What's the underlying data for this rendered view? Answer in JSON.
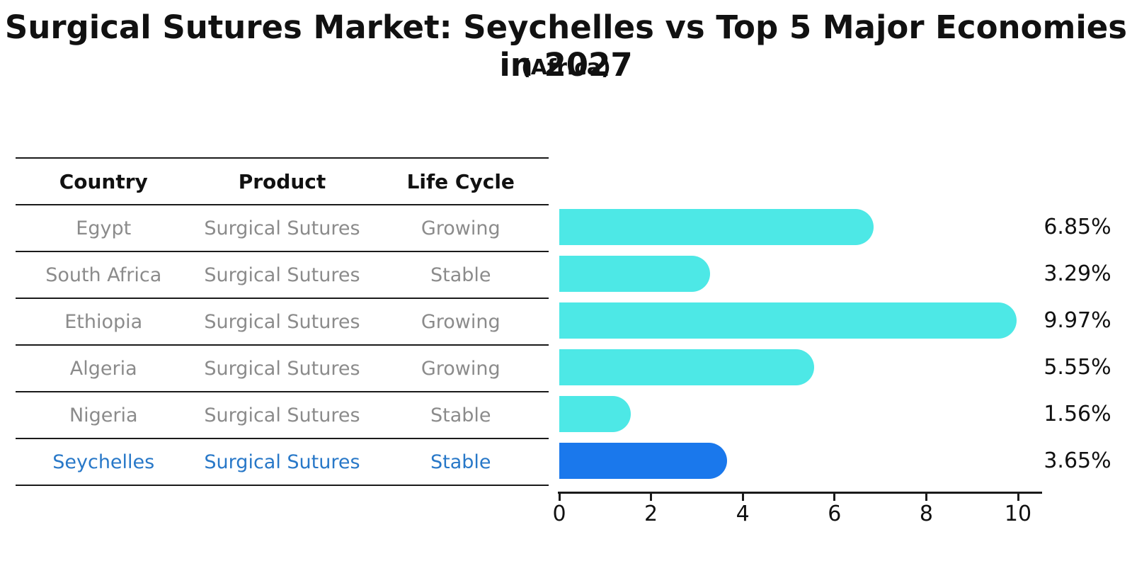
{
  "title": "Surgical Sutures Market: Seychelles vs Top 5 Major Economies in 2027",
  "subtitle": "(Africa)",
  "table": {
    "headers": [
      "Country",
      "Product",
      "Life Cycle"
    ],
    "rows": [
      {
        "country": "Egypt",
        "product": "Surgical Sutures",
        "life_cycle": "Growing",
        "highlight": false
      },
      {
        "country": "South Africa",
        "product": "Surgical Sutures",
        "life_cycle": "Stable",
        "highlight": false
      },
      {
        "country": "Ethiopia",
        "product": "Surgical Sutures",
        "life_cycle": "Growing",
        "highlight": false
      },
      {
        "country": "Algeria",
        "product": "Surgical Sutures",
        "life_cycle": "Growing",
        "highlight": false
      },
      {
        "country": "Nigeria",
        "product": "Surgical Sutures",
        "life_cycle": "Stable",
        "highlight": false
      },
      {
        "country": "Seychelles",
        "product": "Surgical Sutures",
        "life_cycle": "Stable",
        "highlight": true
      }
    ]
  },
  "chart_data": {
    "type": "bar",
    "orientation": "horizontal",
    "categories": [
      "Egypt",
      "South Africa",
      "Ethiopia",
      "Algeria",
      "Nigeria",
      "Seychelles"
    ],
    "values": [
      6.85,
      3.29,
      9.97,
      5.55,
      1.56,
      3.65
    ],
    "value_labels": [
      "6.85%",
      "3.29%",
      "9.97%",
      "5.55%",
      "1.56%",
      "3.65%"
    ],
    "highlight_index": 5,
    "x_ticks": [
      "0",
      "2",
      "4",
      "6",
      "8",
      "10"
    ],
    "x_tick_values": [
      0,
      2,
      4,
      6,
      8,
      10
    ],
    "xlim": [
      0,
      10.5
    ],
    "grid": false,
    "legend": "none",
    "bar_color": "#4de8e6",
    "highlight_bar_color": "#1a78ec",
    "highlight_bar_edge_style": "dotted"
  },
  "colors": {
    "background": "#ffffff",
    "table_line": "#1a1a1a",
    "row_text": "#8b8b8b",
    "highlight_text": "#2878c8",
    "axis": "#1a1a1a",
    "label_text": "#111111"
  }
}
